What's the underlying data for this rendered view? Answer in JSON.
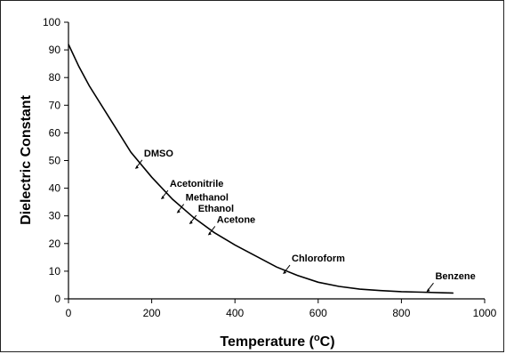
{
  "chart_data": {
    "type": "line",
    "title": "",
    "xlabel": "Temperature (",
    "xlabel_sup": "o",
    "xlabel_end": "C)",
    "ylabel": "Dielectric Constant",
    "xlim": [
      0,
      1000
    ],
    "ylim": [
      0,
      100
    ],
    "xticks": [
      0,
      200,
      400,
      600,
      800,
      1000
    ],
    "yticks": [
      0,
      10,
      20,
      30,
      40,
      50,
      60,
      70,
      80,
      90,
      100
    ],
    "grid": false,
    "legend": "none",
    "line_color": "#000000",
    "series": [
      {
        "x": [
          0,
          25,
          50,
          100,
          150,
          200,
          250,
          300,
          350,
          400,
          450,
          500,
          550,
          600,
          650,
          700,
          750,
          800,
          850,
          900,
          925
        ],
        "y": [
          92,
          84,
          77,
          65,
          53,
          44,
          36,
          29.5,
          24,
          19.5,
          15.5,
          11.5,
          8.5,
          6,
          4.5,
          3.5,
          3,
          2.6,
          2.4,
          2.2,
          2.1
        ]
      }
    ],
    "annotations": [
      {
        "label": "DMSO",
        "x": 160,
        "y": 47
      },
      {
        "label": "Acetonitrile",
        "x": 222,
        "y": 36
      },
      {
        "label": "Methanol",
        "x": 260,
        "y": 31
      },
      {
        "label": "Ethanol",
        "x": 290,
        "y": 27
      },
      {
        "label": "Acetone",
        "x": 335,
        "y": 23
      },
      {
        "label": "Chloroform",
        "x": 515,
        "y": 9
      },
      {
        "label": "Benzene",
        "x": 860,
        "y": 2.5
      }
    ]
  }
}
